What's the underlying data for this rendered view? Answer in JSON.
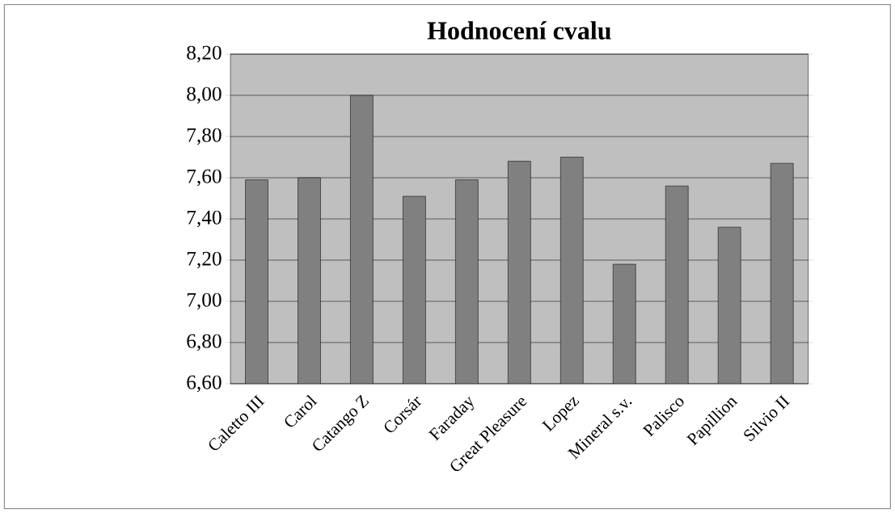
{
  "chart_data": {
    "type": "bar",
    "title": "Hodnocení cvalu",
    "categories": [
      "Caletto III",
      "Carol",
      "Catango Z",
      "Corsár",
      "Faraday",
      "Great Pleasure",
      "Lopez",
      "Mineral s.v.",
      "Palisco",
      "Papillion",
      "Silvio II"
    ],
    "values": [
      7.59,
      7.6,
      8.0,
      7.51,
      7.59,
      7.68,
      7.7,
      7.18,
      7.56,
      7.36,
      7.67
    ],
    "color": "#808080",
    "ylim": [
      6.6,
      8.2
    ],
    "yticks": [
      {
        "value": 6.6,
        "label": "6,60"
      },
      {
        "value": 6.8,
        "label": "6,80"
      },
      {
        "value": 7.0,
        "label": "7,00"
      },
      {
        "value": 7.2,
        "label": "7,20"
      },
      {
        "value": 7.4,
        "label": "7,40"
      },
      {
        "value": 7.6,
        "label": "7,60"
      },
      {
        "value": 7.8,
        "label": "7,80"
      },
      {
        "value": 8.0,
        "label": "8,00"
      },
      {
        "value": 8.2,
        "label": "8,20"
      }
    ],
    "grid": "y"
  }
}
